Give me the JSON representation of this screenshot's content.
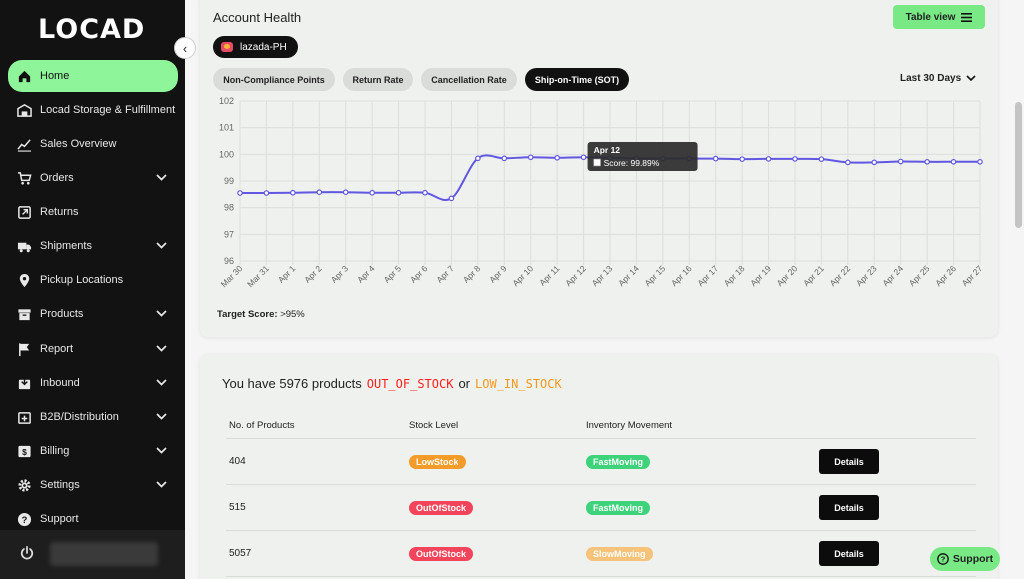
{
  "brand": {
    "logo": "LOCAD"
  },
  "sidebar": {
    "items": [
      {
        "label": "Home",
        "icon": "home-icon",
        "chevron": false,
        "active": true
      },
      {
        "label": "Locad Storage & Fulfillment",
        "icon": "warehouse-icon",
        "chevron": false
      },
      {
        "label": "Sales Overview",
        "icon": "chart-icon",
        "chevron": false
      },
      {
        "label": "Orders",
        "icon": "cart-icon",
        "chevron": true
      },
      {
        "label": "Returns",
        "icon": "return-icon",
        "chevron": false
      },
      {
        "label": "Shipments",
        "icon": "truck-icon",
        "chevron": true
      },
      {
        "label": "Pickup Locations",
        "icon": "pin-icon",
        "chevron": false
      },
      {
        "label": "Products",
        "icon": "box-icon",
        "chevron": true
      },
      {
        "label": "Report",
        "icon": "flag-icon",
        "chevron": true
      },
      {
        "label": "Inbound",
        "icon": "inbound-icon",
        "chevron": true
      },
      {
        "label": "B2B/Distribution",
        "icon": "distribution-icon",
        "chevron": true
      },
      {
        "label": "Billing",
        "icon": "billing-icon",
        "chevron": true
      },
      {
        "label": "Settings",
        "icon": "gear-icon",
        "chevron": true
      },
      {
        "label": "Support",
        "icon": "help-icon",
        "chevron": false
      }
    ]
  },
  "health": {
    "title": "Account Health",
    "table_view_label": "Table view",
    "shop": "lazada-PH",
    "tabs": [
      {
        "label": "Non-Compliance Points"
      },
      {
        "label": "Return Rate"
      },
      {
        "label": "Cancellation Rate"
      },
      {
        "label": "Ship-on-Time (SOT)",
        "active": true
      }
    ],
    "range": "Last 30 Days",
    "target_label": "Target Score:",
    "target_value": ">95%",
    "tooltip_title": "Apr 12",
    "tooltip_text": "Score: 99.89%"
  },
  "chart_data": {
    "type": "line",
    "x": [
      "Mar 30",
      "Mar 31",
      "Apr 1",
      "Apr 2",
      "Apr 3",
      "Apr 4",
      "Apr 5",
      "Apr 6",
      "Apr 7",
      "Apr 8",
      "Apr 9",
      "Apr 10",
      "Apr 11",
      "Apr 12",
      "Apr 13",
      "Apr 14",
      "Apr 15",
      "Apr 16",
      "Apr 17",
      "Apr 18",
      "Apr 19",
      "Apr 20",
      "Apr 21",
      "Apr 22",
      "Apr 23",
      "Apr 24",
      "Apr 25",
      "Apr 26",
      "Apr 27"
    ],
    "series": [
      {
        "name": "Score",
        "color": "#6157e0",
        "values": [
          98.55,
          98.55,
          98.56,
          98.58,
          98.58,
          98.56,
          98.56,
          98.56,
          98.35,
          99.85,
          99.85,
          99.89,
          99.87,
          99.89,
          99.87,
          99.85,
          99.84,
          99.84,
          99.84,
          99.82,
          99.83,
          99.83,
          99.82,
          99.7,
          99.7,
          99.73,
          99.72,
          99.72,
          99.72
        ]
      }
    ],
    "ylim": [
      96,
      102
    ],
    "yticks": [
      96,
      97,
      98,
      99,
      100,
      101,
      102
    ],
    "grid": true
  },
  "stock": {
    "headline": "You have 5976 products",
    "oos_label": "OUT_OF_STOCK",
    "or_label": "or",
    "low_label": "LOW_IN_STOCK",
    "columns": [
      "No. of Products",
      "Stock Level",
      "Inventory Movement"
    ],
    "rows": [
      {
        "count": "404",
        "level": "LowStock",
        "level_color": "#f59b2a",
        "movement": "FastMoving",
        "movement_color": "#3ed37a",
        "action": "Details"
      },
      {
        "count": "515",
        "level": "OutOfStock",
        "level_color": "#f2445a",
        "movement": "FastMoving",
        "movement_color": "#3ed37a",
        "action": "Details"
      },
      {
        "count": "5057",
        "level": "OutOfStock",
        "level_color": "#f2445a",
        "movement": "SlowMoving",
        "movement_color": "#f7c27a",
        "action": "Details"
      }
    ]
  },
  "support_label": "Support"
}
